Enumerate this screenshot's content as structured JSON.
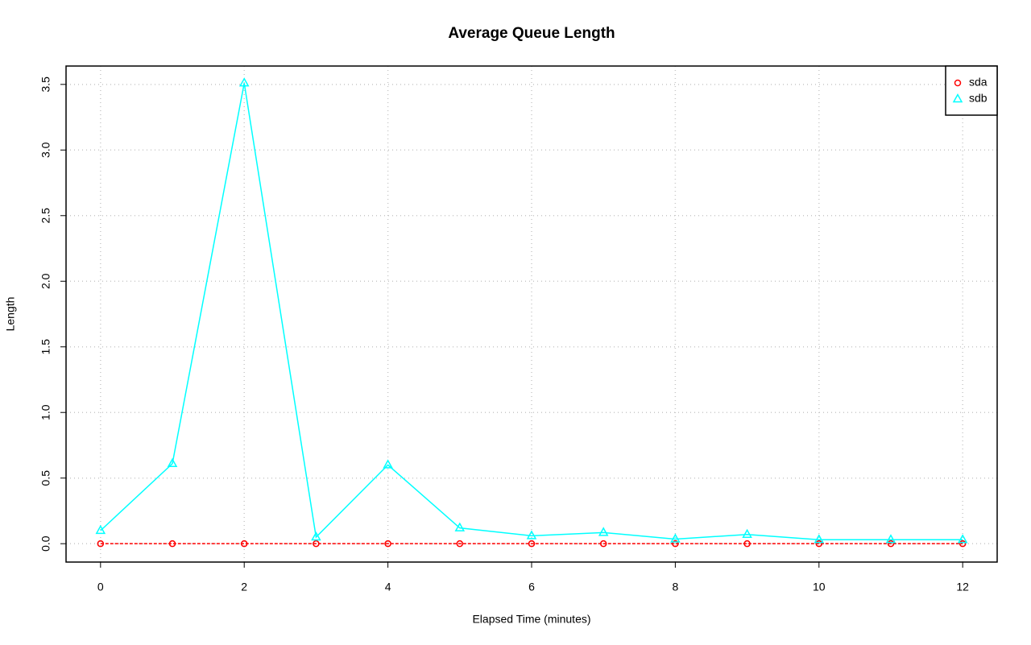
{
  "chart_data": {
    "type": "line",
    "title": "Average Queue Length",
    "x_label": "Elapsed Time (minutes)",
    "y_label": "Length",
    "x": [
      0,
      1,
      2,
      3,
      4,
      5,
      6,
      7,
      8,
      9,
      10,
      11,
      12
    ],
    "series": [
      {
        "name": "sda",
        "color": "#ff0000",
        "linestyle": "dashed",
        "marker": "circle",
        "values": [
          0,
          0,
          0,
          0,
          0,
          0,
          0,
          0,
          0,
          0,
          0,
          0,
          0
        ]
      },
      {
        "name": "sdb",
        "color": "#00ffff",
        "linestyle": "solid",
        "marker": "triangle",
        "values": [
          0.1,
          0.61,
          3.51,
          0.05,
          0.6,
          0.12,
          0.06,
          0.085,
          0.035,
          0.07,
          0.03,
          0.03,
          0.03
        ]
      }
    ],
    "xlim": [
      -0.48,
      12.48
    ],
    "xticks": [
      0,
      2,
      4,
      6,
      8,
      10,
      12
    ],
    "ylim": [
      -0.14,
      3.64
    ],
    "yticks": [
      {
        "value": 0,
        "label": "0.0"
      },
      {
        "value": 0.5,
        "label": "0.5"
      },
      {
        "value": 1,
        "label": "1.0"
      },
      {
        "value": 1.5,
        "label": "1.5"
      },
      {
        "value": 2,
        "label": "2.0"
      },
      {
        "value": 2.5,
        "label": "2.5"
      },
      {
        "value": 3,
        "label": "3.0"
      },
      {
        "value": 3.5,
        "label": "3.5"
      }
    ],
    "grid": true,
    "legend": "top-right"
  }
}
